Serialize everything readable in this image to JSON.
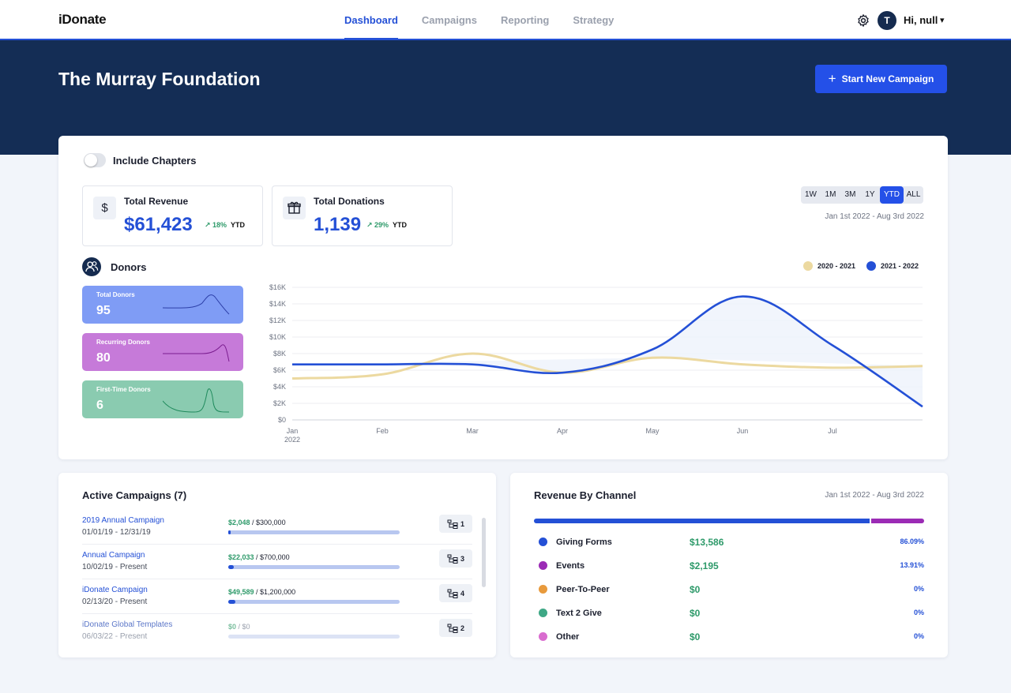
{
  "nav": {
    "logo": "iDonate",
    "tabs": [
      {
        "label": "Dashboard",
        "active": true
      },
      {
        "label": "Campaigns",
        "active": false
      },
      {
        "label": "Reporting",
        "active": false
      },
      {
        "label": "Strategy",
        "active": false
      }
    ],
    "settings_icon": "gear-icon",
    "avatar_initial": "T",
    "greeting": "Hi, null",
    "caret": "▾"
  },
  "hero": {
    "title": "The Murray Foundation",
    "new_campaign_icon": "+",
    "new_campaign_label": "Start New Campaign"
  },
  "filters": {
    "include_chapters_label": "Include Chapters",
    "include_chapters_on": false,
    "ranges": [
      "1W",
      "1M",
      "3M",
      "1Y",
      "YTD",
      "ALL"
    ],
    "selected_range": "YTD",
    "date_range": "Jan 1st 2022 - Aug 3rd 2022"
  },
  "stats": {
    "revenue": {
      "icon": "$",
      "title": "Total Revenue",
      "value": "$61,423",
      "change": "↗ 18%",
      "period": "YTD"
    },
    "donations": {
      "icon": "gift-icon",
      "title": "Total Donations",
      "value": "1,139",
      "change": "↗ 29%",
      "period": "YTD"
    }
  },
  "donors": {
    "title": "Donors",
    "tiles": [
      {
        "label": "Total Donors",
        "value": "95",
        "color": "#7f9cf5"
      },
      {
        "label": "Recurring Donors",
        "value": "80",
        "color": "#c67ad9"
      },
      {
        "label": "First-Time Donors",
        "value": "6",
        "color": "#8acbb0"
      }
    ]
  },
  "chart_data": {
    "type": "line",
    "x_labels": [
      "Jan",
      "Feb",
      "Mar",
      "Apr",
      "May",
      "Jun",
      "Jul"
    ],
    "x_sub_label": "2022",
    "y_ticks": [
      "$0",
      "$2K",
      "$4K",
      "$6K",
      "$8K",
      "$10K",
      "$12K",
      "$14K",
      "$16K"
    ],
    "ylim": [
      0,
      16000
    ],
    "grid": true,
    "legend_position": "top-right",
    "series": [
      {
        "name": "2020 - 2021",
        "color": "#ecd9a0",
        "x": [
          0,
          1,
          2,
          3,
          4,
          5,
          6,
          7
        ],
        "values": [
          5000,
          5500,
          8000,
          5700,
          7500,
          6700,
          6300,
          6500
        ]
      },
      {
        "name": "2021 - 2022",
        "color": "#2450d6",
        "x": [
          0,
          1,
          2,
          3,
          4,
          5,
          6,
          7
        ],
        "values": [
          6700,
          6700,
          6700,
          5700,
          8500,
          14900,
          9000,
          1600
        ]
      }
    ]
  },
  "campaigns": {
    "title": "Active Campaigns (7)",
    "items": [
      {
        "name": "2019 Annual Campaign",
        "dates": "01/01/19 - 12/31/19",
        "raised": "$2,048",
        "goal": " / $300,000",
        "progress": 0.007,
        "count": "1",
        "dim": false
      },
      {
        "name": "Annual Campaign",
        "dates": "10/02/19 - Present",
        "raised": "$22,033",
        "goal": " / $700,000",
        "progress": 0.031,
        "count": "3",
        "dim": false
      },
      {
        "name": "iDonate Campaign",
        "dates": "02/13/20 - Present",
        "raised": "$49,589",
        "goal": " / $1,200,000",
        "progress": 0.041,
        "count": "4",
        "dim": false
      },
      {
        "name": "iDonate Global Templates",
        "dates": "06/03/22 - Present",
        "raised": "$0",
        "goal": " / $0",
        "progress": 0,
        "count": "2",
        "dim": true
      }
    ]
  },
  "revenue_by_channel": {
    "title": "Revenue By Channel",
    "date_range": "Jan 1st 2022 - Aug 3rd 2022",
    "channels": [
      {
        "name": "Giving Forms",
        "amount": "$13,586",
        "percent": "86.09%",
        "share": 0.8609,
        "color": "#2450d6"
      },
      {
        "name": "Events",
        "amount": "$2,195",
        "percent": "13.91%",
        "share": 0.1391,
        "color": "#9b2bb5"
      },
      {
        "name": "Peer-To-Peer",
        "amount": "$0",
        "percent": "0%",
        "share": 0,
        "color": "#e89a3c"
      },
      {
        "name": "Text 2 Give",
        "amount": "$0",
        "percent": "0%",
        "share": 0,
        "color": "#3fa886"
      },
      {
        "name": "Other",
        "amount": "$0",
        "percent": "0%",
        "share": 0,
        "color": "#d96ccf"
      }
    ]
  }
}
